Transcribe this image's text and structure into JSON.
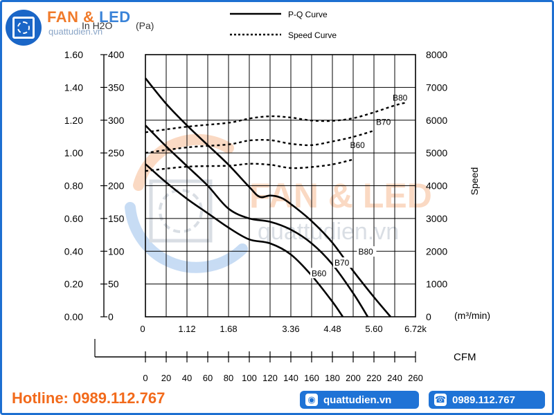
{
  "brand": {
    "name_part1": "FAN & ",
    "name_part2": "LED",
    "site": "quattudien.vn",
    "watermark": "FAN & LED",
    "watermark_site": "quattudien.vn"
  },
  "footer": {
    "hotline": "Hotline: 0989.112.767",
    "website": "quattudien.vn",
    "phone": "0989.112.767",
    "icon_web": "globe-icon",
    "icon_phone": "phone-icon"
  },
  "chart_data": {
    "type": "line",
    "legend": [
      {
        "name": "P-Q Curve",
        "style": "solid"
      },
      {
        "name": "Speed Curve",
        "style": "dotted"
      }
    ],
    "y_left_units": [
      "In H2O",
      "(Pa)"
    ],
    "y_left_inh2o_ticks": [
      "1.60",
      "1.40",
      "1.20",
      "1.00",
      "0.80",
      "0.60",
      "0.40",
      "0.20",
      "0.00"
    ],
    "y_left_pa_ticks": [
      400,
      350,
      300,
      250,
      200,
      150,
      100,
      50,
      0
    ],
    "y_right_label": "Speed",
    "y_right_ticks": [
      8000,
      7000,
      6000,
      5000,
      4000,
      3000,
      2000,
      1000,
      0
    ],
    "x_unit": "(m³/min)",
    "x_ticks": [
      "0",
      "1.12",
      "1.68",
      "3.36",
      "4.48",
      "5.60",
      "6.72k"
    ],
    "cfm_label": "CFM",
    "cfm_ticks": [
      0,
      20,
      40,
      60,
      80,
      100,
      120,
      140,
      160,
      180,
      200,
      220,
      240,
      260
    ],
    "xlim_cfm": [
      0,
      260
    ],
    "ylim_pa": [
      0,
      400
    ],
    "ylim_speed": [
      0,
      8000
    ],
    "grid": true,
    "pq_series": [
      {
        "name": "B80",
        "points": [
          [
            0,
            364
          ],
          [
            20,
            325
          ],
          [
            40,
            292
          ],
          [
            60,
            262
          ],
          [
            80,
            232
          ],
          [
            100,
            198
          ],
          [
            110,
            183
          ],
          [
            120,
            185
          ],
          [
            130,
            182
          ],
          [
            140,
            172
          ],
          [
            160,
            146
          ],
          [
            180,
            113
          ],
          [
            200,
            70
          ],
          [
            220,
            30
          ],
          [
            236,
            0
          ]
        ]
      },
      {
        "name": "B70",
        "points": [
          [
            0,
            292
          ],
          [
            20,
            260
          ],
          [
            40,
            230
          ],
          [
            60,
            200
          ],
          [
            80,
            165
          ],
          [
            100,
            150
          ],
          [
            120,
            145
          ],
          [
            140,
            133
          ],
          [
            160,
            112
          ],
          [
            180,
            80
          ],
          [
            200,
            36
          ],
          [
            214,
            0
          ]
        ]
      },
      {
        "name": "B60",
        "points": [
          [
            0,
            233
          ],
          [
            20,
            205
          ],
          [
            40,
            180
          ],
          [
            60,
            158
          ],
          [
            80,
            136
          ],
          [
            100,
            118
          ],
          [
            120,
            112
          ],
          [
            140,
            95
          ],
          [
            160,
            63
          ],
          [
            180,
            23
          ],
          [
            190,
            0
          ]
        ]
      }
    ],
    "speed_series": [
      {
        "name": "B80",
        "points": [
          [
            0,
            5630
          ],
          [
            40,
            5800
          ],
          [
            80,
            5920
          ],
          [
            100,
            6050
          ],
          [
            120,
            6120
          ],
          [
            140,
            6080
          ],
          [
            160,
            5990
          ],
          [
            180,
            5980
          ],
          [
            200,
            6060
          ],
          [
            220,
            6240
          ],
          [
            240,
            6450
          ],
          [
            250,
            6530
          ]
        ]
      },
      {
        "name": "B70",
        "points": [
          [
            0,
            5000
          ],
          [
            40,
            5170
          ],
          [
            80,
            5260
          ],
          [
            100,
            5380
          ],
          [
            120,
            5390
          ],
          [
            140,
            5280
          ],
          [
            160,
            5240
          ],
          [
            180,
            5350
          ],
          [
            200,
            5490
          ],
          [
            220,
            5680
          ]
        ]
      },
      {
        "name": "B60",
        "points": [
          [
            0,
            4450
          ],
          [
            40,
            4580
          ],
          [
            80,
            4610
          ],
          [
            100,
            4670
          ],
          [
            120,
            4640
          ],
          [
            140,
            4540
          ],
          [
            160,
            4570
          ],
          [
            180,
            4650
          ],
          [
            200,
            4800
          ]
        ]
      }
    ],
    "pq_labels": [
      {
        "name": "B80",
        "cfm": 205,
        "pa": 95
      },
      {
        "name": "B70",
        "cfm": 182,
        "pa": 78
      },
      {
        "name": "B60",
        "cfm": 160,
        "pa": 62
      }
    ],
    "speed_labels": [
      {
        "name": "B80",
        "cfm": 238,
        "speed": 6600
      },
      {
        "name": "B70",
        "cfm": 222,
        "speed": 5860
      },
      {
        "name": "B60",
        "cfm": 197,
        "speed": 5150
      }
    ]
  }
}
